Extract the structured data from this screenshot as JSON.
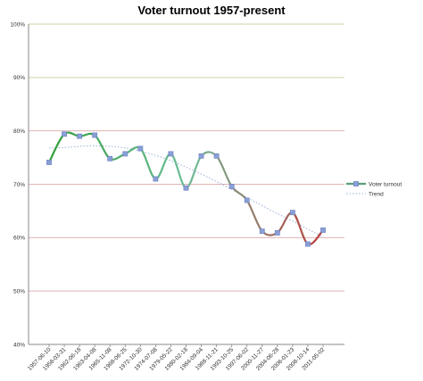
{
  "chart_data": {
    "type": "line",
    "title": "Voter turnout 1957-present",
    "xlabel": "",
    "ylabel": "",
    "ylim": [
      40,
      100
    ],
    "yticks": [
      "40%",
      "50%",
      "60%",
      "70%",
      "80%",
      "90%",
      "100%"
    ],
    "x": [
      "1957-06-10",
      "1958-03-31",
      "1962-06-18",
      "1963-04-08",
      "1965-11-08",
      "1968-06-25",
      "1972-10-30",
      "1974-07-08",
      "1979-05-22",
      "1980-02-18",
      "1984-09-04",
      "1988-11-21",
      "1993-10-25",
      "1997-06-02",
      "2000-11-27",
      "2004-06-28",
      "2006-01-23",
      "2008-10-14",
      "2011-05-02"
    ],
    "series": [
      {
        "name": "Voter turnout",
        "values": [
          74.1,
          79.4,
          79.0,
          79.2,
          74.8,
          75.7,
          76.7,
          71.0,
          75.7,
          69.3,
          75.3,
          75.3,
          69.6,
          67.0,
          61.2,
          60.9,
          64.7,
          58.8,
          61.4
        ],
        "color": "#8a9fd6"
      },
      {
        "name": "Trend",
        "values": [
          76.8,
          76.9,
          77.1,
          77.2,
          77.1,
          76.8,
          76.2,
          75.4,
          74.4,
          73.2,
          71.9,
          70.5,
          69.0,
          67.5,
          66.0,
          64.5,
          63.1,
          61.6,
          60.1
        ],
        "color": "#9ab0d8",
        "style": "dotted"
      }
    ],
    "gridline_colors": {
      "90": "#c5d6a0",
      "80": "#e0b2b5",
      "70": "#e0b2b5",
      "60": "#e0b2b5",
      "50": "#e0b2b5",
      "100": "#c5d6a0"
    },
    "line_color_scale": [
      "#2e9e3a",
      "#6fbf9a",
      "#b93a3a"
    ],
    "legend_position": "right",
    "grid": true
  }
}
